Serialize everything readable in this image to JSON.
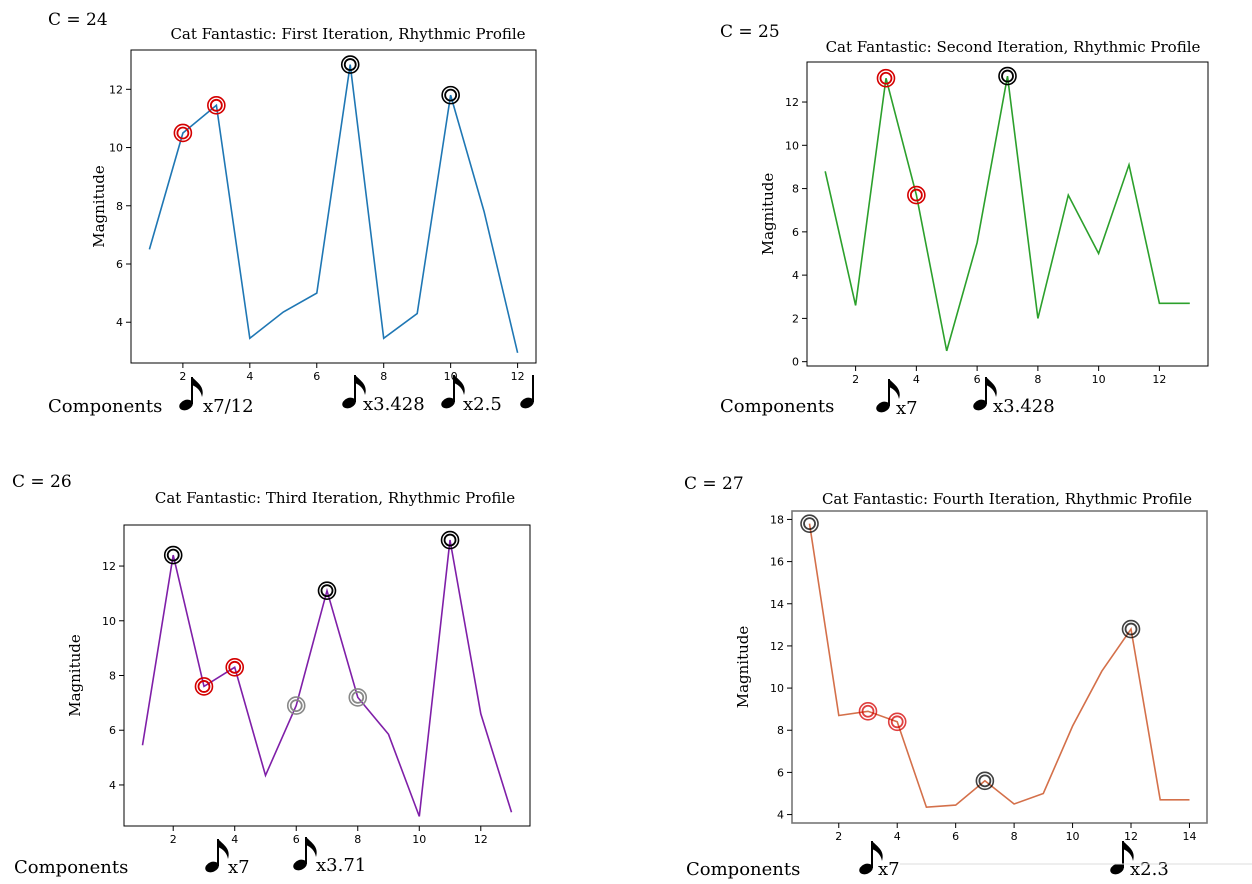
{
  "components_label": "Components",
  "colors": {
    "ring_red": "#d40000",
    "ring_black": "#000000",
    "ring_gray": "#888888"
  },
  "chart_data": [
    {
      "type": "line",
      "c_label": "C = 24",
      "title": "Cat Fantastic: First Iteration, Rhythmic Profile",
      "xlabel": "",
      "ylabel": "Magnitude",
      "color": "#1f77b4",
      "x": [
        1,
        2,
        3,
        4,
        5,
        6,
        7,
        8,
        9,
        10,
        11,
        12
      ],
      "values": [
        6.5,
        10.5,
        11.45,
        3.45,
        4.35,
        5.0,
        12.85,
        3.45,
        4.3,
        11.8,
        7.8,
        2.95
      ],
      "xlim": [
        0.45,
        12.55
      ],
      "ylim": [
        2.6,
        13.35
      ],
      "xticks": [
        2,
        4,
        6,
        8,
        10,
        12
      ],
      "yticks": [
        4,
        6,
        8,
        10,
        12
      ],
      "marked_points": [
        {
          "x": 2,
          "y": 10.5,
          "ring": "red"
        },
        {
          "x": 3,
          "y": 11.45,
          "ring": "red"
        },
        {
          "x": 7,
          "y": 12.85,
          "ring": "black"
        },
        {
          "x": 10,
          "y": 11.8,
          "ring": "black"
        }
      ],
      "components": [
        {
          "note": "eighth",
          "multiplier": "x7/12"
        },
        {
          "note": "eighth",
          "multiplier": "x3.428"
        },
        {
          "note": "eighth",
          "multiplier": "x2.5"
        },
        {
          "note": "quarter",
          "multiplier": ""
        }
      ]
    },
    {
      "type": "line",
      "c_label": "C = 25",
      "title": "Cat Fantastic: Second Iteration, Rhythmic Profile",
      "xlabel": "",
      "ylabel": "Magnitude",
      "color": "#2ca02c",
      "x": [
        1,
        2,
        3,
        4,
        5,
        6,
        7,
        8,
        9,
        10,
        11,
        12,
        13
      ],
      "values": [
        8.8,
        2.6,
        13.1,
        7.7,
        0.5,
        5.5,
        13.2,
        2.0,
        7.7,
        5.0,
        9.1,
        2.7,
        2.7
      ],
      "xlim": [
        0.4,
        13.6
      ],
      "ylim": [
        -0.2,
        13.85
      ],
      "xticks": [
        2,
        4,
        6,
        8,
        10,
        12
      ],
      "yticks": [
        0,
        2,
        4,
        6,
        8,
        10,
        12
      ],
      "marked_points": [
        {
          "x": 3,
          "y": 13.1,
          "ring": "red"
        },
        {
          "x": 4,
          "y": 7.7,
          "ring": "red"
        },
        {
          "x": 7,
          "y": 13.2,
          "ring": "black"
        }
      ],
      "components": [
        {
          "note": "eighth",
          "multiplier": "x7"
        },
        {
          "note": "eighth",
          "multiplier": "x3.428"
        }
      ]
    },
    {
      "type": "line",
      "c_label": "C = 26",
      "title": "Cat Fantastic: Third Iteration, Rhythmic Profile",
      "xlabel": "",
      "ylabel": "Magnitude",
      "color": "#7f1fa8",
      "x": [
        1,
        2,
        3,
        4,
        5,
        6,
        7,
        8,
        9,
        10,
        11,
        12,
        13
      ],
      "values": [
        5.45,
        12.4,
        7.6,
        8.3,
        4.35,
        6.9,
        11.1,
        7.2,
        5.85,
        2.85,
        12.95,
        6.6,
        3.0
      ],
      "xlim": [
        0.4,
        13.6
      ],
      "ylim": [
        2.5,
        13.5
      ],
      "xticks": [
        2,
        4,
        6,
        8,
        10,
        12
      ],
      "yticks": [
        4,
        6,
        8,
        10,
        12
      ],
      "marked_points": [
        {
          "x": 2,
          "y": 12.4,
          "ring": "black"
        },
        {
          "x": 3,
          "y": 7.6,
          "ring": "red"
        },
        {
          "x": 4,
          "y": 8.3,
          "ring": "red"
        },
        {
          "x": 6,
          "y": 6.9,
          "ring": "gray"
        },
        {
          "x": 7,
          "y": 11.1,
          "ring": "black"
        },
        {
          "x": 8,
          "y": 7.2,
          "ring": "gray"
        },
        {
          "x": 11,
          "y": 12.95,
          "ring": "black"
        }
      ],
      "components": [
        {
          "note": "eighth",
          "multiplier": "x7"
        },
        {
          "note": "eighth",
          "multiplier": "x3.71"
        }
      ]
    },
    {
      "type": "line",
      "c_label": "C = 27",
      "title": "Cat Fantastic: Fourth Iteration, Rhythmic Profile",
      "xlabel": "",
      "ylabel": "Magnitude",
      "color": "#d4704a",
      "x": [
        1,
        2,
        3,
        4,
        5,
        6,
        7,
        8,
        9,
        10,
        11,
        12,
        13,
        14
      ],
      "values": [
        17.8,
        8.7,
        8.9,
        8.4,
        4.35,
        4.45,
        5.6,
        4.5,
        5.0,
        8.2,
        10.8,
        12.8,
        4.7,
        4.7
      ],
      "xlim": [
        0.4,
        14.6
      ],
      "ylim": [
        3.6,
        18.4
      ],
      "xticks": [
        2,
        4,
        6,
        8,
        10,
        12,
        14
      ],
      "yticks": [
        4,
        6,
        8,
        10,
        12,
        14,
        16,
        18
      ],
      "marked_points": [
        {
          "x": 1,
          "y": 17.8,
          "ring": "black"
        },
        {
          "x": 3,
          "y": 8.9,
          "ring": "red"
        },
        {
          "x": 4,
          "y": 8.4,
          "ring": "red"
        },
        {
          "x": 7,
          "y": 5.6,
          "ring": "black"
        },
        {
          "x": 12,
          "y": 12.8,
          "ring": "black"
        }
      ],
      "components": [
        {
          "note": "eighth",
          "multiplier": "x7"
        },
        {
          "note": "eighth",
          "multiplier": "x2.3"
        }
      ]
    }
  ]
}
